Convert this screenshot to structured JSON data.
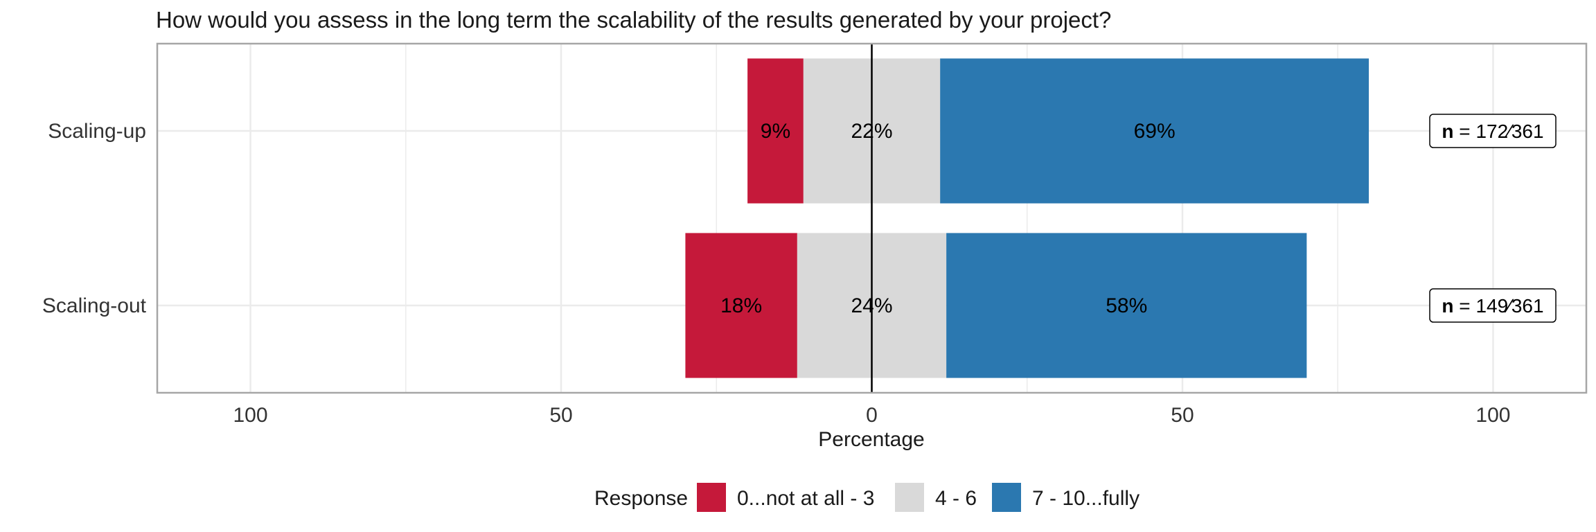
{
  "chart_data": {
    "type": "bar",
    "orientation": "horizontal",
    "stacking": "diverging",
    "title": "How would you assess in the long term the scalability of the results generated by your project?",
    "xlabel": "Percentage",
    "ylabel": "",
    "xlim": [
      -115,
      115
    ],
    "xticks": [
      -100,
      -50,
      0,
      50,
      100
    ],
    "xtick_labels": [
      "100",
      "50",
      "0",
      "50",
      "100"
    ],
    "grid": true,
    "legend": {
      "title": "Response",
      "position": "bottom",
      "entries": [
        {
          "label": "0...not at all - 3",
          "color": "#c5193a"
        },
        {
          "label": "4 - 6",
          "color": "#d9d9d9"
        },
        {
          "label": "7 - 10...fully",
          "color": "#2b78b0"
        }
      ]
    },
    "categories": [
      "Scaling-up",
      "Scaling-out"
    ],
    "series": [
      {
        "name": "0...not at all - 3",
        "values": [
          9,
          18
        ],
        "labels": [
          "9%",
          "18%"
        ]
      },
      {
        "name": "4 - 6",
        "values": [
          22,
          24
        ],
        "labels": [
          "22%",
          "24%"
        ]
      },
      {
        "name": "7 - 10...fully",
        "values": [
          69,
          58
        ],
        "labels": [
          "69%",
          "58%"
        ]
      }
    ],
    "n_labels": [
      {
        "prefix": "n",
        "value": "= 172∕361"
      },
      {
        "prefix": "n",
        "value": "= 149∕361"
      }
    ],
    "colors": {
      "panel_border": "#a6a6a6",
      "grid": "#ebebeb",
      "zero_line": "#000000"
    }
  }
}
